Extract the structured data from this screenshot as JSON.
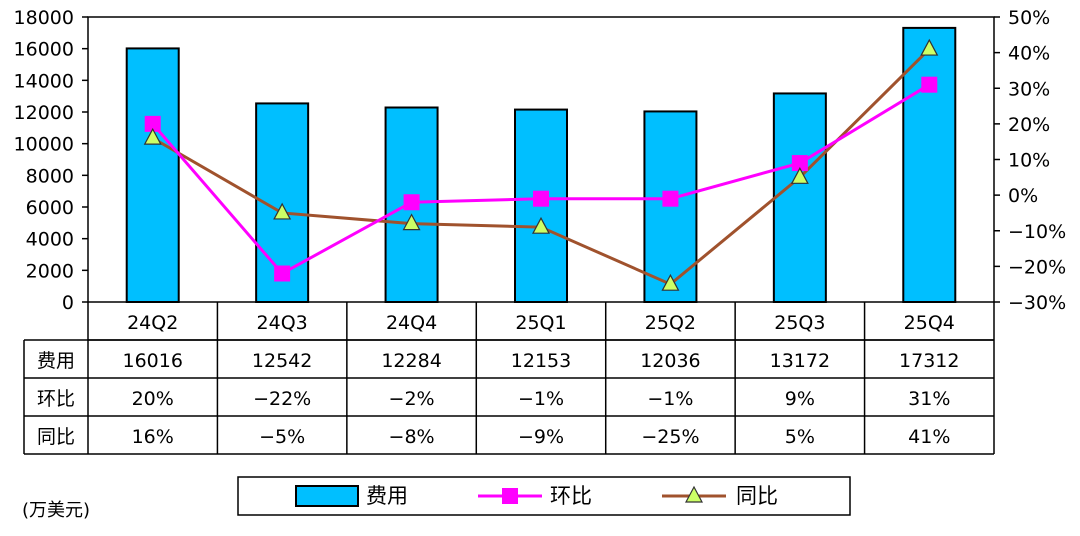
{
  "chart_data": {
    "type": "bar",
    "unit_label": "(万美元)",
    "categories": [
      "24Q2",
      "24Q3",
      "24Q4",
      "25Q1",
      "25Q2",
      "25Q3",
      "25Q4"
    ],
    "series": [
      {
        "name": "费用",
        "kind": "bar",
        "axis": "left",
        "values": [
          16016,
          12542,
          12284,
          12153,
          12036,
          13172,
          17312
        ],
        "labels": [
          "16016",
          "12542",
          "12284",
          "12153",
          "12036",
          "13172",
          "17312"
        ],
        "color": "#00bfff"
      },
      {
        "name": "环比",
        "kind": "line",
        "marker": "square",
        "axis": "right",
        "values": [
          20,
          -22,
          -2,
          -1,
          -1,
          9,
          31
        ],
        "labels": [
          "20%",
          "−22%",
          "−2%",
          "−1%",
          "−1%",
          "9%",
          "31%"
        ],
        "color": "#ff00ff"
      },
      {
        "name": "同比",
        "kind": "line",
        "marker": "triangle",
        "axis": "right",
        "values": [
          16,
          -5,
          -8,
          -9,
          -25,
          5,
          41
        ],
        "labels": [
          "16%",
          "−5%",
          "−8%",
          "−9%",
          "−25%",
          "5%",
          "41%"
        ],
        "color": "#a0522d",
        "marker_color": "#ccff66"
      }
    ],
    "left_axis": {
      "ylim": [
        0,
        18000
      ],
      "ticks": [
        "0",
        "2000",
        "4000",
        "6000",
        "8000",
        "10000",
        "12000",
        "14000",
        "16000",
        "18000"
      ]
    },
    "right_axis": {
      "ylim": [
        -30,
        50
      ],
      "ticks": [
        "−30%",
        "−20%",
        "−10%",
        "0%",
        "10%",
        "20%",
        "30%",
        "40%",
        "50%"
      ]
    },
    "legend": [
      "费用",
      "环比",
      "同比"
    ],
    "legend_position": "bottom"
  }
}
